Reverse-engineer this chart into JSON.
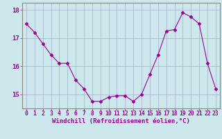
{
  "x": [
    0,
    1,
    2,
    3,
    4,
    5,
    6,
    7,
    8,
    9,
    10,
    11,
    12,
    13,
    14,
    15,
    16,
    17,
    18,
    19,
    20,
    21,
    22,
    23
  ],
  "y": [
    17.5,
    17.2,
    16.8,
    16.4,
    16.1,
    16.1,
    15.5,
    15.2,
    14.75,
    14.75,
    14.9,
    14.95,
    14.95,
    14.75,
    15.0,
    15.7,
    16.4,
    17.25,
    17.3,
    17.9,
    17.75,
    17.5,
    16.1,
    15.2
  ],
  "line_color": "#990099",
  "marker": "D",
  "marker_size": 2.5,
  "bg_color": "#cce8ed",
  "grid_color": "#aaaacc",
  "xlabel": "Windchill (Refroidissement éolien,°C)",
  "xlabel_color": "#990099",
  "tick_color": "#990099",
  "label_color": "#990099",
  "ylim": [
    14.5,
    18.25
  ],
  "xlim": [
    -0.5,
    23.5
  ],
  "yticks": [
    15,
    16,
    17,
    18
  ],
  "xticks": [
    0,
    1,
    2,
    3,
    4,
    5,
    6,
    7,
    8,
    9,
    10,
    11,
    12,
    13,
    14,
    15,
    16,
    17,
    18,
    19,
    20,
    21,
    22,
    23
  ],
  "spine_color": "#888888",
  "tick_fontsize": 5.8,
  "xlabel_fontsize": 6.5,
  "ytick_fontsize": 6.5
}
